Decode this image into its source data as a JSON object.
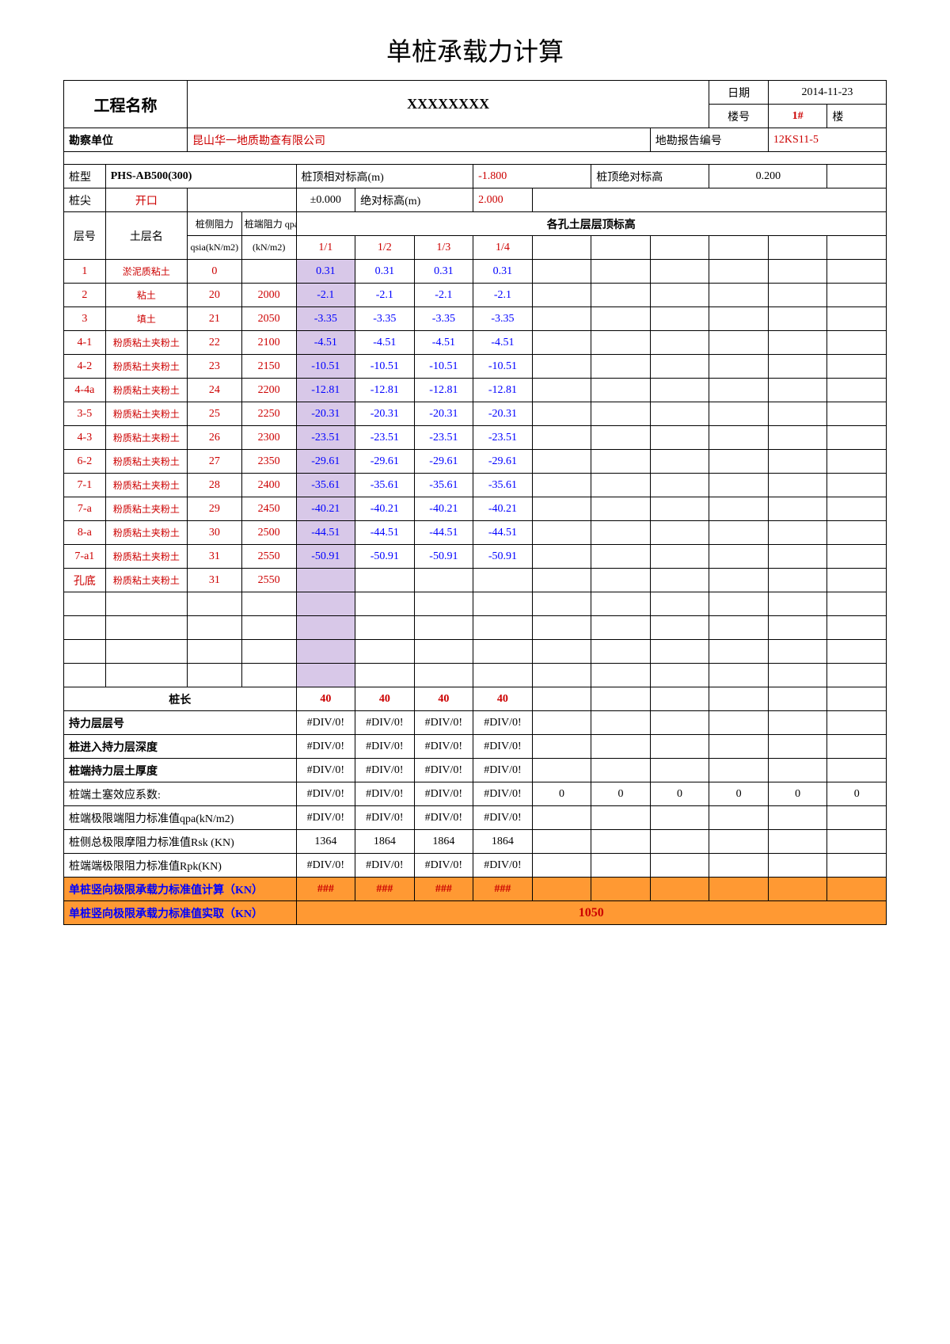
{
  "title": "单桩承载力计算",
  "header": {
    "project_name_label": "工程名称",
    "project_name": "XXXXXXXX",
    "date_label": "日期",
    "date": "2014-11-23",
    "building_label": "楼号",
    "building_no": "1#",
    "building_unit": "楼",
    "survey_unit_label": "勘察单位",
    "survey_unit": "昆山华一地质勘查有限公司",
    "report_no_label": "地勘报告编号",
    "report_no": "12KS11-5"
  },
  "pile": {
    "type_label": "桩型",
    "type": "PHS-AB500(300)",
    "top_rel_label": "桩顶相对标高(m)",
    "top_rel": "-1.800",
    "top_abs_label": "桩顶绝对标高",
    "top_abs": "0.200",
    "tip_label": "桩尖",
    "tip": "开口",
    "tolerance": "±0.000",
    "abs_elev_label": "绝对标高(m)",
    "abs_elev": "2.000"
  },
  "cols": {
    "layer_no": "层号",
    "layer_name": "土层名",
    "qsia_label1": "桩侧阻力",
    "qsia_label2": "qsia(kN/m2)",
    "qpa_label1": "桩端阻力 qpa",
    "qpa_label2": "(kN/m2)",
    "hole_header": "各孔土层层顶标高",
    "holes": [
      "1/1",
      "1/2",
      "1/3",
      "1/4"
    ]
  },
  "rows": [
    {
      "no": "1",
      "name": "淤泥质粘土",
      "qsia": "0",
      "qpa": "",
      "v": [
        "0.31",
        "0.31",
        "0.31",
        "0.31"
      ]
    },
    {
      "no": "2",
      "name": "粘土",
      "qsia": "20",
      "qpa": "2000",
      "v": [
        "-2.1",
        "-2.1",
        "-2.1",
        "-2.1"
      ]
    },
    {
      "no": "3",
      "name": "填土",
      "qsia": "21",
      "qpa": "2050",
      "v": [
        "-3.35",
        "-3.35",
        "-3.35",
        "-3.35"
      ]
    },
    {
      "no": "4-1",
      "name": "粉质粘土夹粉土",
      "qsia": "22",
      "qpa": "2100",
      "v": [
        "-4.51",
        "-4.51",
        "-4.51",
        "-4.51"
      ]
    },
    {
      "no": "4-2",
      "name": "粉质粘土夹粉土",
      "qsia": "23",
      "qpa": "2150",
      "v": [
        "-10.51",
        "-10.51",
        "-10.51",
        "-10.51"
      ]
    },
    {
      "no": "4-4a",
      "name": "粉质粘土夹粉土",
      "qsia": "24",
      "qpa": "2200",
      "v": [
        "-12.81",
        "-12.81",
        "-12.81",
        "-12.81"
      ]
    },
    {
      "no": "3-5",
      "name": "粉质粘土夹粉土",
      "qsia": "25",
      "qpa": "2250",
      "v": [
        "-20.31",
        "-20.31",
        "-20.31",
        "-20.31"
      ]
    },
    {
      "no": "4-3",
      "name": "粉质粘土夹粉土",
      "qsia": "26",
      "qpa": "2300",
      "v": [
        "-23.51",
        "-23.51",
        "-23.51",
        "-23.51"
      ]
    },
    {
      "no": "6-2",
      "name": "粉质粘土夹粉土",
      "qsia": "27",
      "qpa": "2350",
      "v": [
        "-29.61",
        "-29.61",
        "-29.61",
        "-29.61"
      ]
    },
    {
      "no": "7-1",
      "name": "粉质粘土夹粉土",
      "qsia": "28",
      "qpa": "2400",
      "v": [
        "-35.61",
        "-35.61",
        "-35.61",
        "-35.61"
      ]
    },
    {
      "no": "7-a",
      "name": "粉质粘土夹粉土",
      "qsia": "29",
      "qpa": "2450",
      "v": [
        "-40.21",
        "-40.21",
        "-40.21",
        "-40.21"
      ]
    },
    {
      "no": "8-a",
      "name": "粉质粘土夹粉土",
      "qsia": "30",
      "qpa": "2500",
      "v": [
        "-44.51",
        "-44.51",
        "-44.51",
        "-44.51"
      ]
    },
    {
      "no": "7-a1",
      "name": "粉质粘土夹粉土",
      "qsia": "31",
      "qpa": "2550",
      "v": [
        "-50.91",
        "-50.91",
        "-50.91",
        "-50.91"
      ]
    },
    {
      "no": "孔底",
      "name": "粉质粘土夹粉土",
      "qsia": "31",
      "qpa": "2550",
      "v": [
        "",
        "",
        "",
        ""
      ]
    }
  ],
  "summary": {
    "pile_length_label": "桩长",
    "pile_length": [
      "40",
      "40",
      "40",
      "40"
    ],
    "bearing_layer_label": "持力层层号",
    "div0": "#DIV/0!",
    "depth_label": "桩进入持力层深度",
    "thickness_label": "桩端持力层土厚度",
    "plug_label": "桩端土塞效应系数:",
    "plug_zeros": [
      "0",
      "0",
      "0",
      "0",
      "0",
      "0"
    ],
    "qpa_std_label": "桩端极限端阻力标准值qpa(kN/m2)",
    "rsk_label": "桩侧总极限摩阻力标准值Rsk (KN)",
    "rsk": [
      "1364",
      "1864",
      "1864",
      "1864"
    ],
    "rpk_label": "桩端端极限阻力标准值Rpk(KN)",
    "calc_label": "单桩竖向极限承载力标准值计算（KN）",
    "hash": "###",
    "actual_label": "单桩竖向极限承载力标准值实取（KN）",
    "actual": "1050"
  },
  "colors": {
    "red": "#c00",
    "blue": "#00f",
    "orange": "#ff9933",
    "purple": "#d8c8e8"
  }
}
